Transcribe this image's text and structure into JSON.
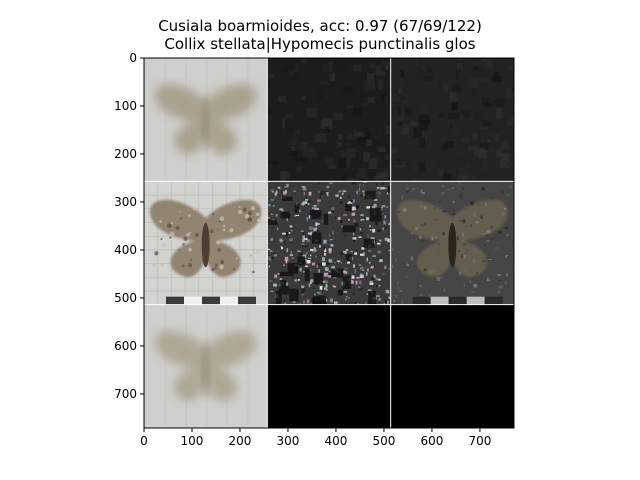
{
  "chart_data": {
    "type": "image_grid",
    "title": "Cusiala boarmioides, acc: 0.97 (67/69/122)",
    "subtitle": "Collix stellata|Hypomecis punctinalis glos",
    "xlim": [
      0,
      771
    ],
    "ylim": [
      771,
      0
    ],
    "xticks": [
      0,
      100,
      200,
      300,
      400,
      500,
      600,
      700
    ],
    "yticks": [
      0,
      100,
      200,
      300,
      400,
      500,
      600,
      700
    ],
    "grid_rows": 3,
    "grid_cols": 3,
    "tile_size": 257,
    "tiles": [
      {
        "row": 0,
        "col": 0,
        "kind": "blurred-moth",
        "colors": {
          "bg": "#cfd0cd",
          "moth": "#9c9278"
        }
      },
      {
        "row": 0,
        "col": 1,
        "kind": "dark-noise",
        "colors": {
          "bg": "#1c1c1c"
        }
      },
      {
        "row": 0,
        "col": 2,
        "kind": "dark-noise",
        "colors": {
          "bg": "#222220"
        }
      },
      {
        "row": 1,
        "col": 0,
        "kind": "moth-photo",
        "colors": {
          "bg": "#d2d2cf",
          "moth": "#8a7d68"
        }
      },
      {
        "row": 1,
        "col": 1,
        "kind": "speckle-noise",
        "colors": {
          "bg": "#3a3a3a"
        }
      },
      {
        "row": 1,
        "col": 2,
        "kind": "masked-moth",
        "colors": {
          "bg": "#454545",
          "moth": "#6b6250"
        }
      },
      {
        "row": 2,
        "col": 0,
        "kind": "blurred-moth",
        "colors": {
          "bg": "#cfd0cd",
          "moth": "#a39a82"
        }
      },
      {
        "row": 2,
        "col": 1,
        "kind": "black",
        "colors": {
          "bg": "#000000"
        }
      },
      {
        "row": 2,
        "col": 2,
        "kind": "black",
        "colors": {
          "bg": "#000000"
        }
      }
    ]
  }
}
